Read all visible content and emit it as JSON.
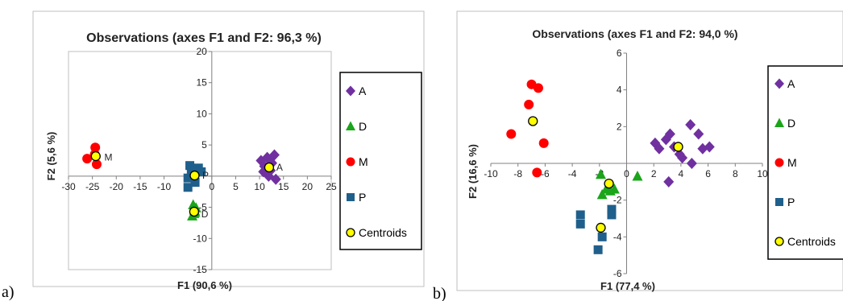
{
  "chart_data": [
    {
      "type": "scatter",
      "panel_label": "a)",
      "title": "Observations (axes F1 and F2: 96,3 %)",
      "xlabel": "F1 (90,6 %)",
      "ylabel": "F2 (5,6 %)",
      "xlim": [
        -30,
        25
      ],
      "ylim": [
        -15,
        20
      ],
      "xticks": [
        -30,
        -25,
        -20,
        -15,
        -10,
        -5,
        0,
        5,
        10,
        15,
        20,
        25
      ],
      "yticks": [
        -15,
        -10,
        -5,
        0,
        5,
        10,
        15,
        20
      ],
      "grid": false,
      "legend_position": "right",
      "series": [
        {
          "name": "A",
          "color": "#7030a0",
          "marker": "diamond",
          "points": [
            [
              10.3,
              2.5
            ],
            [
              11.0,
              1.6
            ],
            [
              11.6,
              3.0
            ],
            [
              12.3,
              0.9
            ],
            [
              12.6,
              2.1
            ],
            [
              13.1,
              3.4
            ],
            [
              11.9,
              0.0
            ],
            [
              13.4,
              -0.5
            ],
            [
              10.8,
              0.7
            ],
            [
              12.0,
              2.6
            ]
          ]
        },
        {
          "name": "D",
          "color": "#1aa51a",
          "marker": "triangle",
          "points": [
            [
              -3.3,
              -5.1
            ],
            [
              -3.7,
              -6.0
            ],
            [
              -4.1,
              -6.4
            ],
            [
              -3.9,
              -4.6
            ],
            [
              -3.6,
              -5.5
            ],
            [
              -3.5,
              -5.8
            ]
          ]
        },
        {
          "name": "M",
          "color": "#ff0000",
          "marker": "circle",
          "points": [
            [
              -26.1,
              2.8
            ],
            [
              -24.4,
              4.6
            ],
            [
              -24.1,
              1.9
            ],
            [
              -24.5,
              3.5
            ]
          ]
        },
        {
          "name": "P",
          "color": "#1f5f8b",
          "marker": "square",
          "points": [
            [
              -5.0,
              -1.8
            ],
            [
              -5.0,
              -0.3
            ],
            [
              -4.6,
              1.7
            ],
            [
              -3.5,
              0.9
            ],
            [
              -3.5,
              -1.0
            ],
            [
              -2.2,
              0.7
            ],
            [
              -2.8,
              1.3
            ],
            [
              -4.3,
              0.6
            ]
          ]
        },
        {
          "name": "Centroids",
          "color": "#ffff00",
          "marker": "circle-outlined",
          "points": [
            [
              12.0,
              1.4
            ],
            [
              -3.7,
              -5.7
            ],
            [
              -24.3,
              3.2
            ],
            [
              -3.6,
              0.1
            ]
          ]
        }
      ],
      "annotations": [
        {
          "text": "A",
          "x": 13.5,
          "y": 1.4
        },
        {
          "text": "D",
          "x": -2.2,
          "y": -6.1
        },
        {
          "text": "M",
          "x": -22.5,
          "y": 3.0
        },
        {
          "text": "P",
          "x": -2.0,
          "y": 0.1
        }
      ]
    },
    {
      "type": "scatter",
      "panel_label": "b)",
      "title": "Observations (axes F1 and F2: 94,0 %)",
      "xlabel": "F1 (77,4 %)",
      "ylabel": "F2 (16,6 %)",
      "xlim": [
        -10,
        10
      ],
      "ylim": [
        -6,
        6
      ],
      "xticks": [
        -10,
        -8,
        -6,
        -4,
        -2,
        0,
        2,
        4,
        6,
        8,
        10
      ],
      "yticks": [
        -6,
        -4,
        -2,
        0,
        2,
        4,
        6
      ],
      "grid": false,
      "legend_position": "right",
      "series": [
        {
          "name": "A",
          "color": "#7030a0",
          "marker": "diamond",
          "points": [
            [
              2.1,
              1.1
            ],
            [
              2.4,
              0.8
            ],
            [
              2.9,
              1.3
            ],
            [
              3.2,
              1.6
            ],
            [
              3.5,
              0.9
            ],
            [
              3.9,
              0.5
            ],
            [
              4.1,
              0.3
            ],
            [
              4.7,
              2.1
            ],
            [
              5.3,
              1.6
            ],
            [
              5.6,
              0.8
            ],
            [
              6.1,
              0.9
            ],
            [
              4.8,
              0.0
            ],
            [
              3.1,
              -1.0
            ]
          ]
        },
        {
          "name": "D",
          "color": "#1aa51a",
          "marker": "triangle",
          "points": [
            [
              -1.9,
              -0.6
            ],
            [
              -1.8,
              -1.7
            ],
            [
              -1.5,
              -1.4
            ],
            [
              -1.2,
              -1.5
            ],
            [
              -0.9,
              -1.4
            ],
            [
              0.8,
              -0.7
            ]
          ]
        },
        {
          "name": "M",
          "color": "#ff0000",
          "marker": "circle",
          "points": [
            [
              -8.5,
              1.6
            ],
            [
              -7.2,
              3.2
            ],
            [
              -7.0,
              4.3
            ],
            [
              -6.5,
              4.1
            ],
            [
              -6.1,
              1.1
            ],
            [
              -6.6,
              -0.5
            ]
          ]
        },
        {
          "name": "P",
          "color": "#1f5f8b",
          "marker": "square",
          "points": [
            [
              -3.4,
              -2.8
            ],
            [
              -3.4,
              -3.3
            ],
            [
              -2.1,
              -4.7
            ],
            [
              -1.8,
              -4.0
            ],
            [
              -1.1,
              -2.5
            ],
            [
              -1.1,
              -2.8
            ]
          ]
        },
        {
          "name": "Centroids",
          "color": "#ffff00",
          "marker": "circle-outlined",
          "points": [
            [
              3.8,
              0.9
            ],
            [
              -1.3,
              -1.1
            ],
            [
              -6.9,
              2.3
            ],
            [
              -1.9,
              -3.5
            ]
          ]
        }
      ]
    }
  ]
}
